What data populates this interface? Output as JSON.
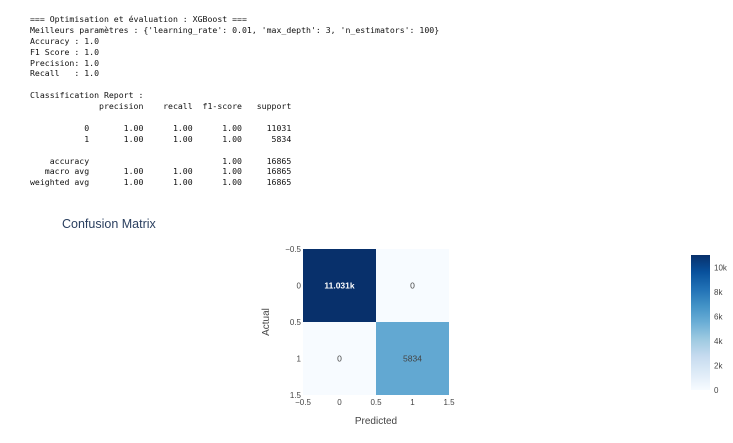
{
  "console": {
    "lines": [
      "=== Optimisation et évaluation : XGBoost ===",
      "Meilleurs paramètres : {'learning_rate': 0.01, 'max_depth': 3, 'n_estimators': 100}",
      "Accuracy : 1.0",
      "F1 Score : 1.0",
      "Precision: 1.0",
      "Recall   : 1.0",
      "",
      "Classification Report :",
      "              precision    recall  f1-score   support",
      "",
      "           0       1.00      1.00      1.00     11031",
      "           1       1.00      1.00      1.00      5834",
      "",
      "    accuracy                           1.00     16865",
      "   macro avg       1.00      1.00      1.00     16865",
      "weighted avg       1.00      1.00      1.00     16865"
    ]
  },
  "chart_data": {
    "type": "heatmap",
    "title": "Confusion Matrix",
    "xlabel": "Predicted",
    "ylabel": "Actual",
    "x": [
      0,
      1
    ],
    "y": [
      0,
      1
    ],
    "z": [
      [
        11031,
        0
      ],
      [
        0,
        5834
      ]
    ],
    "cell_labels": [
      [
        "11.031k",
        "0"
      ],
      [
        "0",
        "5834"
      ]
    ],
    "xlim": [
      -0.5,
      1.5
    ],
    "ylim": [
      1.5,
      -0.5
    ],
    "x_ticks": [
      "−0.5",
      "0",
      "0.5",
      "1",
      "1.5"
    ],
    "y_ticks": [
      "−0.5",
      "0",
      "0.5",
      "1",
      "1.5"
    ],
    "colorscale": "Blues",
    "zmin": 0,
    "zmax": 11031,
    "colorbar_ticks": [
      "0",
      "2k",
      "4k",
      "6k",
      "8k",
      "10k"
    ],
    "colorbar_tick_values": [
      0,
      2000,
      4000,
      6000,
      8000,
      10000
    ]
  }
}
